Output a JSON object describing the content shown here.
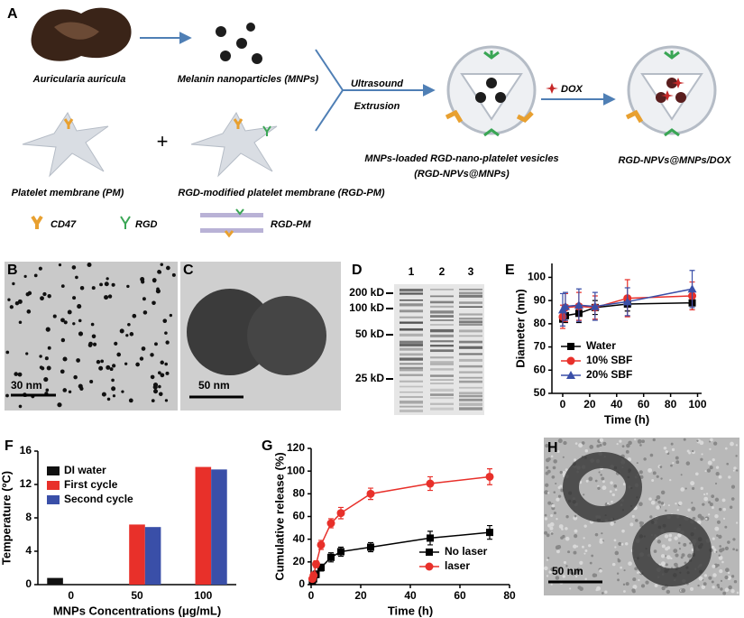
{
  "panel_labels": [
    "A",
    "B",
    "C",
    "D",
    "E",
    "F",
    "G",
    "H"
  ],
  "diagram": {
    "source": "Auricularia auricula",
    "mnps": "Melanin nanoparticles (MNPs)",
    "step1": "Ultrasound",
    "step2": "Extrusion",
    "vesicle": "MNPs-loaded RGD-nano-platelet vesicles",
    "vesicle_abbr": "(RGD-NPVs@MNPs)",
    "dox": "DOX",
    "final": "RGD-NPVs@MNPs/DOX",
    "pm": "Platelet membrane (PM)",
    "plus": "+",
    "rgd_pm": "RGD-modified platelet membrane (RGD-PM)",
    "legend": [
      "CD47",
      "RGD",
      "RGD-PM"
    ]
  },
  "scale_bars": [
    "30 nm",
    "50 nm",
    "50 nm"
  ],
  "gel": {
    "lanes": [
      "1",
      "2",
      "3"
    ],
    "markers": [
      "200 kD",
      "100 kD",
      "50 kD",
      "25 kD"
    ]
  },
  "chart_data": [
    {
      "type": "line",
      "xlabel": "Time (h)",
      "ylabel": "Diameter (nm)",
      "x": [
        0,
        2,
        12,
        24,
        48,
        96
      ],
      "series": [
        {
          "name": "Water",
          "color": "#000000",
          "marker": "square",
          "values": [
            82,
            83.5,
            84.5,
            87,
            88.5,
            89
          ],
          "errors": [
            3,
            3,
            4,
            3,
            3,
            3
          ]
        },
        {
          "name": "10% SBF",
          "color": "#e8302a",
          "marker": "circle",
          "values": [
            83,
            87,
            87.5,
            87,
            91,
            92
          ],
          "errors": [
            5,
            6,
            6,
            5,
            8,
            6
          ]
        },
        {
          "name": "20% SBF",
          "color": "#3a4fa8",
          "marker": "triangle",
          "values": [
            86,
            87.5,
            88,
            87.5,
            89.5,
            95
          ],
          "errors": [
            7,
            6,
            7,
            6,
            6,
            8
          ]
        }
      ],
      "xlim": [
        -8,
        103
      ],
      "ylim": [
        50,
        106
      ],
      "xticks": [
        0,
        20,
        40,
        60,
        80,
        100
      ],
      "yticks": [
        50,
        60,
        70,
        80,
        90,
        100
      ],
      "legend": "lower-left"
    },
    {
      "type": "bar",
      "xlabel": "MNPs Concentrations (μg/mL)",
      "ylabel": "Temperature (ºC)",
      "categories": [
        "0",
        "50",
        "100"
      ],
      "series": [
        {
          "name": "DI water",
          "color": "#111111",
          "values": [
            0.8,
            null,
            null
          ]
        },
        {
          "name": "First cycle",
          "color": "#e8302a",
          "values": [
            null,
            7.2,
            14.1
          ]
        },
        {
          "name": "Second cycle",
          "color": "#3a4fa8",
          "values": [
            null,
            6.9,
            13.8
          ]
        }
      ],
      "ylim": [
        0,
        16
      ],
      "yticks": [
        0,
        4,
        8,
        12,
        16
      ],
      "legend": "upper-left"
    },
    {
      "type": "line",
      "xlabel": "Time (h)",
      "ylabel": "Cumulative release (%)",
      "x": [
        0.5,
        1,
        2,
        4,
        8,
        12,
        24,
        48,
        72
      ],
      "series": [
        {
          "name": "No laser",
          "color": "#000000",
          "marker": "square",
          "values": [
            3,
            5,
            9,
            15,
            24,
            29,
            33,
            41,
            46
          ],
          "errors": [
            2,
            2,
            3,
            3,
            4,
            4,
            4,
            6,
            6
          ]
        },
        {
          "name": "laser",
          "color": "#e8302a",
          "marker": "circle",
          "values": [
            5,
            8,
            18,
            35,
            54,
            63,
            80,
            89,
            95
          ],
          "errors": [
            2,
            3,
            3,
            4,
            4,
            5,
            5,
            6,
            7
          ]
        }
      ],
      "xlim": [
        0,
        80
      ],
      "ylim": [
        0,
        120
      ],
      "xticks": [
        0,
        20,
        40,
        60,
        80
      ],
      "yticks": [
        0,
        20,
        40,
        60,
        80,
        100,
        120
      ],
      "legend": "lower-right"
    }
  ]
}
